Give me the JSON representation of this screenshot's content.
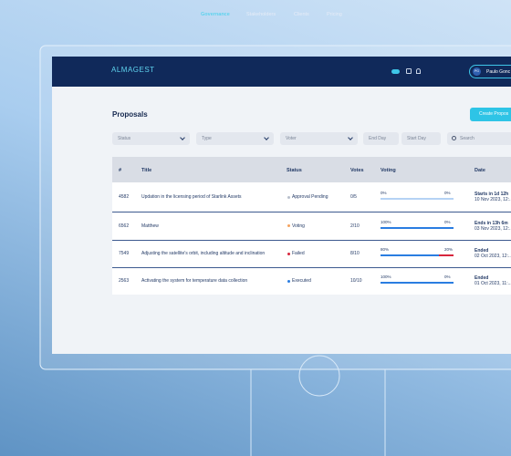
{
  "nav": {
    "logo": "ALMAGEST",
    "links": [
      "Governance",
      "Stakeholders",
      "Clients",
      "Pricing"
    ],
    "avatar": "PG",
    "user": "Paulo Gonc"
  },
  "page": {
    "title": "Proposals",
    "create": "Create Propos"
  },
  "filters": {
    "selects": [
      "Status",
      "Type",
      "Voter"
    ],
    "end_day": "End Day",
    "start_day": "Start Day",
    "search": "Search"
  },
  "table": {
    "headers": [
      "#",
      "Title",
      "Status",
      "Votes",
      "Voting",
      "Date"
    ],
    "rows": [
      {
        "id": "4582",
        "title": "Updation in the licensing period of Starlink Assets",
        "status": "Approval Pending",
        "status_color": "#b8bfcc",
        "votes": "0/5",
        "voting": {
          "values": [
            0,
            0
          ],
          "value_labels": [
            "0%",
            "0%"
          ]
        },
        "date": [
          "Starts in 1d 12h",
          "10 Nov 2023, 12:..."
        ]
      },
      {
        "id": "6562",
        "title": "Matthew",
        "status": "Voting",
        "status_color": "#f5a25d",
        "votes": "2/10",
        "voting": {
          "values": [
            100,
            0
          ],
          "value_labels": [
            "100%",
            "0%"
          ]
        },
        "date": [
          "Ends in 13h 6m",
          "03 Nov 2023, 12:..."
        ]
      },
      {
        "id": "7549",
        "title": "Adjusting the satellite's orbit, including altitude and inclination",
        "status": "Failed",
        "status_color": "#d7263d",
        "votes": "8/10",
        "voting": {
          "values": [
            80,
            20
          ],
          "value_labels": [
            "80%",
            "20%"
          ]
        },
        "date": [
          "Ended",
          "02 Oct 2023, 12:..."
        ]
      },
      {
        "id": "2563",
        "title": "Activating the system for temperature data collection",
        "status": "Executed",
        "status_color": "#2a7de1",
        "votes": "10/10",
        "voting": {
          "values": [
            100,
            0
          ],
          "value_labels": [
            "100%",
            "0%"
          ]
        },
        "date": [
          "Ended",
          "01 Oct 2023, 11:..."
        ]
      }
    ]
  }
}
